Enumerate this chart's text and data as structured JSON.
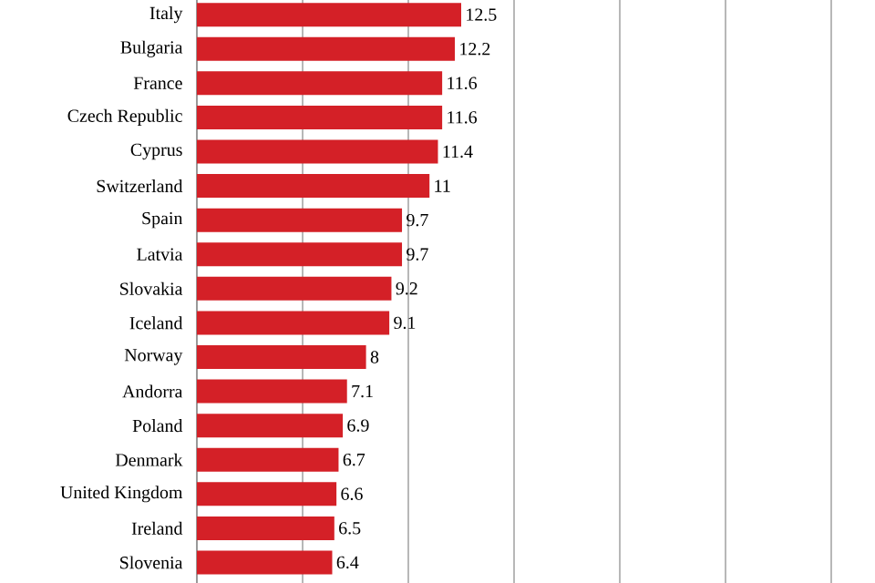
{
  "chart_data": {
    "type": "bar",
    "orientation": "horizontal",
    "categories": [
      "Italy",
      "Bulgaria",
      "France",
      "Czech Republic",
      "Cyprus",
      "Switzerland",
      "Spain",
      "Latvia",
      "Slovakia",
      "Iceland",
      "Norway",
      "Andorra",
      "Poland",
      "Denmark",
      "United Kingdom",
      "Ireland",
      "Slovenia"
    ],
    "values": [
      12.5,
      12.2,
      11.6,
      11.6,
      11.4,
      11,
      9.7,
      9.7,
      9.2,
      9.1,
      8,
      7.1,
      6.9,
      6.7,
      6.6,
      6.5,
      6.4
    ],
    "color": "#d42027",
    "data_labels": true,
    "grid": "x",
    "tick_labels": "y",
    "xlim": [
      0,
      30
    ],
    "xticks": [
      {
        "value": 5,
        "label": null
      },
      {
        "value": 10,
        "label": null
      },
      {
        "value": 15,
        "label": null
      },
      {
        "value": 20,
        "label": null
      },
      {
        "value": 25,
        "label": null
      },
      {
        "value": 30,
        "label": null
      }
    ]
  }
}
